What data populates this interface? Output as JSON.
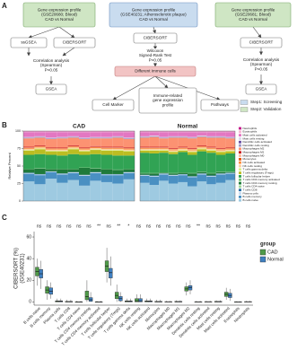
{
  "panel_labels": [
    "A",
    "B",
    "C"
  ],
  "diagram": {
    "nodes": [
      {
        "lines": [
          "Gene expression profile",
          "(GSE20680; Blood)",
          "CAD vs Normal"
        ]
      },
      {
        "lines": [
          "Gene expression profile",
          "(GSE40231; Atherosclerotic plaque)",
          "CAD vs Normal"
        ]
      },
      {
        "lines": [
          "Gene expression profile",
          "(GSE20681; Blood)",
          "CAD vs Normal"
        ]
      },
      {
        "lines": [
          "ssGSEA"
        ]
      },
      {
        "lines": [
          "CIBERSORT"
        ]
      },
      {
        "lines": [
          "CIBERSORT"
        ]
      },
      {
        "lines": [
          "CIBERSORT"
        ]
      },
      {
        "lines": [
          "GSEA"
        ]
      },
      {
        "lines": [
          "Different Immune cells"
        ]
      },
      {
        "lines": [
          "Cell Marker"
        ]
      },
      {
        "lines": [
          "Immune-related",
          "gene expression",
          "profile"
        ]
      },
      {
        "lines": [
          "Pathways"
        ]
      },
      {
        "lines": [
          "GSEA"
        ]
      }
    ],
    "notes": [
      {
        "lines": [
          "Correlation analysis",
          "(Spearman)",
          "P<0.05"
        ]
      },
      {
        "lines": [
          "Wilcoxon",
          "Signed-Rank Test",
          "P<0.05"
        ]
      },
      {
        "lines": [
          "Correlation analysis",
          "(Spearman)",
          "P<0.05"
        ]
      }
    ],
    "legend": [
      {
        "label": "Step1: Screening",
        "color": "#c9dcef"
      },
      {
        "label": "Step2: Validation",
        "color": "#cfe6c4"
      }
    ]
  },
  "chart_data": [
    {
      "type": "stacked_bar",
      "title": "CAD",
      "y_label": "Relative Percent",
      "ylim": [
        0,
        100
      ],
      "yticks": [
        0,
        25,
        50,
        75,
        100
      ],
      "series": [
        {
          "name": "B cells naive",
          "color": "#9ecae1",
          "values": [
            28,
            24,
            32,
            26,
            30,
            22,
            29,
            27,
            25,
            31
          ]
        },
        {
          "name": "B cells memory",
          "color": "#4a90c2",
          "values": [
            11,
            13,
            9,
            12,
            10,
            14,
            11,
            10,
            12,
            9
          ]
        },
        {
          "name": "Plasma cells",
          "color": "#c6dbef",
          "values": [
            1,
            1,
            1,
            1,
            1,
            1,
            1,
            1,
            1,
            1
          ]
        },
        {
          "name": "T cells CD8",
          "color": "#2c6fa6",
          "values": [
            0.5,
            0.5,
            0.5,
            0.5,
            0.5,
            0.5,
            0.5,
            0.5,
            0.5,
            0.5
          ]
        },
        {
          "name": "T cells CD4 naive",
          "color": "#a1d99b",
          "values": [
            0,
            0,
            0,
            0,
            0,
            0,
            0,
            0,
            0,
            0
          ]
        },
        {
          "name": "T cells CD4 memory resting",
          "color": "#1f7a3a",
          "values": [
            5,
            8,
            3,
            6,
            4,
            10,
            5,
            7,
            6,
            4
          ]
        },
        {
          "name": "T cells CD4 memory activated",
          "color": "#74c476",
          "values": [
            0.5,
            0.5,
            0.5,
            0.5,
            0.5,
            0.5,
            0.5,
            0.5,
            0.5,
            0.5
          ]
        },
        {
          "name": "T cells follicular helper",
          "color": "#31a354",
          "values": [
            20,
            20,
            20,
            19,
            21,
            18,
            20,
            20,
            20,
            19
          ]
        },
        {
          "name": "T cells regulatory (Tregs)",
          "color": "#bcbd22",
          "values": [
            6,
            7,
            5,
            6,
            7,
            5,
            6,
            6,
            7,
            6
          ]
        },
        {
          "name": "T cells gamma delta",
          "color": "#d9ef8b",
          "values": [
            1,
            1,
            1,
            1,
            1,
            1,
            1,
            1,
            1,
            1
          ]
        },
        {
          "name": "NK cells resting",
          "color": "#fdd0a2",
          "values": [
            1.5,
            1.5,
            1.5,
            1.5,
            1.5,
            1.5,
            1.5,
            1.5,
            1.5,
            1.5
          ]
        },
        {
          "name": "NK cells activated",
          "color": "#fd8d3c",
          "values": [
            1,
            1,
            1,
            1,
            1,
            1,
            1,
            1,
            1,
            1
          ]
        },
        {
          "name": "Monocytes",
          "color": "#e6550d",
          "values": [
            0.5,
            0.5,
            0.5,
            0.5,
            0.5,
            0.5,
            0.5,
            0.5,
            0.5,
            0.5
          ]
        },
        {
          "name": "Macrophages M0",
          "color": "#fcbba1",
          "values": [
            0.5,
            0.5,
            0.5,
            0.5,
            0.5,
            0.5,
            0.5,
            0.5,
            0.5,
            0.5
          ]
        },
        {
          "name": "Macrophages M1",
          "color": "#cb181d",
          "values": [
            1,
            1,
            1,
            1,
            1,
            1,
            1,
            1,
            1,
            1
          ]
        },
        {
          "name": "Macrophages M2",
          "color": "#fc9272",
          "values": [
            12,
            11,
            12,
            13,
            11,
            12,
            11,
            12,
            13,
            12
          ]
        },
        {
          "name": "Dendritic cells resting",
          "color": "#9e9ac8",
          "values": [
            0.5,
            0.5,
            0.5,
            0.5,
            0.5,
            0.5,
            0.5,
            0.5,
            0.5,
            0.5
          ]
        },
        {
          "name": "Dendritic cells activated",
          "color": "#6a51a3",
          "values": [
            0.5,
            0.5,
            0.5,
            0.5,
            0.5,
            0.5,
            0.5,
            0.5,
            0.5,
            0.5
          ]
        },
        {
          "name": "Mast cells resting",
          "color": "#dadaeb",
          "values": [
            1,
            1,
            1,
            1,
            1,
            1,
            1,
            1,
            1,
            1
          ]
        },
        {
          "name": "Mast cells activated",
          "color": "#e377c2",
          "values": [
            7,
            6,
            8,
            7,
            6,
            8,
            7,
            7,
            6,
            8
          ]
        },
        {
          "name": "Eosinophils",
          "color": "#f7b6d2",
          "values": [
            0.5,
            0.5,
            0.5,
            0.5,
            0.5,
            0.5,
            0.5,
            0.5,
            0.5,
            0.5
          ]
        },
        {
          "name": "Neutrophils",
          "color": "#c51b8a",
          "values": [
            0.5,
            0.5,
            0.5,
            0.5,
            0.5,
            0.5,
            0.5,
            0.5,
            0.5,
            0.5
          ]
        }
      ]
    },
    {
      "type": "stacked_bar",
      "title": "Normal",
      "ylim": [
        0,
        100
      ],
      "series": [
        {
          "color": "#9ecae1",
          "values": [
            26,
            23,
            29,
            25,
            27,
            21,
            28,
            24,
            26,
            30
          ]
        },
        {
          "color": "#4a90c2",
          "values": [
            10,
            12,
            9,
            11,
            10,
            13,
            10,
            11,
            12,
            9
          ]
        },
        {
          "color": "#c6dbef",
          "values": [
            1,
            1,
            1,
            1,
            1,
            1,
            1,
            1,
            1,
            1
          ]
        },
        {
          "color": "#2c6fa6",
          "values": [
            0.5,
            0.5,
            0.5,
            0.5,
            0.5,
            0.5,
            0.5,
            0.5,
            0.5,
            0.5
          ]
        },
        {
          "color": "#a1d99b",
          "values": [
            0,
            0,
            0,
            0,
            0,
            0,
            0,
            0,
            0,
            0
          ]
        },
        {
          "color": "#1f7a3a",
          "values": [
            2,
            3,
            1,
            2,
            2,
            4,
            2,
            3,
            2,
            1
          ]
        },
        {
          "color": "#74c476",
          "values": [
            0.5,
            0.5,
            0.5,
            0.5,
            0.5,
            0.5,
            0.5,
            0.5,
            0.5,
            0.5
          ]
        },
        {
          "color": "#31a354",
          "values": [
            29,
            28,
            28,
            27,
            29,
            26,
            29,
            29,
            24,
            26
          ]
        },
        {
          "color": "#bcbd22",
          "values": [
            3,
            4,
            3,
            3,
            2,
            4,
            3,
            3,
            4,
            3
          ]
        },
        {
          "color": "#d9ef8b",
          "values": [
            1,
            1,
            1,
            1,
            1,
            1,
            1,
            1,
            1,
            1
          ]
        },
        {
          "color": "#fdd0a2",
          "values": [
            1.5,
            1.5,
            1.5,
            1.5,
            1.5,
            1.5,
            1.5,
            1.5,
            1.5,
            1.5
          ]
        },
        {
          "color": "#fd8d3c",
          "values": [
            1,
            1,
            1,
            1,
            1,
            1,
            1,
            1,
            1,
            1
          ]
        },
        {
          "color": "#e6550d",
          "values": [
            0.5,
            0.5,
            0.5,
            0.5,
            0.5,
            0.5,
            0.5,
            0.5,
            0.5,
            0.5
          ]
        },
        {
          "color": "#fcbba1",
          "values": [
            0.5,
            0.5,
            0.5,
            0.5,
            0.5,
            0.5,
            0.5,
            0.5,
            0.5,
            0.5
          ]
        },
        {
          "color": "#cb181d",
          "values": [
            1,
            1,
            1,
            1,
            1,
            1,
            1,
            1,
            1,
            1
          ]
        },
        {
          "color": "#fc9272",
          "values": [
            13,
            14,
            12,
            15,
            13,
            14,
            12,
            13,
            15,
            13
          ]
        },
        {
          "color": "#9e9ac8",
          "values": [
            0.5,
            0.5,
            0.5,
            0.5,
            0.5,
            0.5,
            0.5,
            0.5,
            0.5,
            0.5
          ]
        },
        {
          "color": "#6a51a3",
          "values": [
            0.5,
            0.5,
            0.5,
            0.5,
            0.5,
            0.5,
            0.5,
            0.5,
            0.5,
            0.5
          ]
        },
        {
          "color": "#dadaeb",
          "values": [
            1,
            1,
            1,
            1,
            1,
            1,
            1,
            1,
            1,
            1
          ]
        },
        {
          "color": "#e377c2",
          "values": [
            6,
            5,
            7,
            6,
            6,
            7,
            5,
            6,
            6,
            7
          ]
        },
        {
          "color": "#f7b6d2",
          "values": [
            0.5,
            0.5,
            0.5,
            0.5,
            0.5,
            0.5,
            0.5,
            0.5,
            0.5,
            0.5
          ]
        },
        {
          "color": "#c51b8a",
          "values": [
            0.5,
            0.5,
            0.5,
            0.5,
            0.5,
            0.5,
            0.5,
            0.5,
            0.5,
            0.5
          ]
        }
      ]
    },
    {
      "type": "boxplot",
      "y_label": [
        "CIBERSORT (%)",
        "(GSE40231)"
      ],
      "ylim": [
        -3,
        65
      ],
      "yticks": [
        0,
        20,
        40,
        60
      ],
      "legend_title": "group",
      "categories": [
        "B cells naive",
        "B cells memory",
        "Plasma cells",
        "T cells CD8",
        "T cells CD4 naive",
        "T cells CD4 memory resting",
        "T cells CD4 memory activated",
        "T cells follicular helper",
        "T cells regulatory (Tregs)",
        "T cells gamma delta",
        "NK cells resting",
        "NK cells activated",
        "Monocytes",
        "Macrophages M0",
        "Macrophages M1",
        "Macrophages M2",
        "Dendritic cells resting",
        "Dendritic cells activated",
        "Mast cells resting",
        "Mast cells activated",
        "Eosinophils",
        "Neutrophils"
      ],
      "annotations": [
        "ns",
        "ns",
        "ns",
        "ns",
        "ns",
        "ns",
        "**",
        "ns",
        "**",
        "*",
        "ns",
        "ns",
        "ns",
        "ns",
        "ns",
        "ns",
        "**",
        "ns",
        "ns",
        "ns",
        "ns",
        "ns"
      ],
      "series": [
        {
          "name": "CAD",
          "color": "#4f9a48",
          "min": [
            15,
            2,
            0,
            0,
            0,
            0,
            0,
            18,
            0,
            0,
            0,
            0,
            0,
            0,
            0,
            6,
            0,
            0,
            0,
            2,
            0,
            0
          ],
          "q1": [
            24,
            8,
            0,
            0,
            0,
            2,
            0,
            28,
            3,
            0,
            0,
            0,
            0,
            0,
            0,
            10,
            0,
            0,
            0,
            5,
            0,
            0
          ],
          "median": [
            28,
            11,
            0.5,
            0,
            0,
            5,
            0,
            33,
            6,
            0.5,
            1,
            0.5,
            0,
            0,
            0,
            12,
            0,
            0,
            0,
            7,
            0,
            0
          ],
          "q3": [
            32,
            14,
            1,
            0.5,
            0,
            10,
            0,
            38,
            9,
            1,
            3,
            1,
            0.5,
            0.3,
            0.5,
            14,
            0.2,
            0.3,
            0.5,
            9,
            0,
            0.3
          ],
          "max": [
            40,
            20,
            3,
            2,
            1,
            20,
            1,
            50,
            16,
            3,
            7,
            3,
            2,
            1,
            1.5,
            18,
            1,
            1,
            1.5,
            13,
            0.5,
            1
          ]
        },
        {
          "name": "Normal",
          "color": "#3f7fc0",
          "min": [
            12,
            3,
            0,
            0,
            0,
            0,
            0,
            15,
            0,
            0,
            0,
            0,
            0,
            0,
            0,
            7,
            0,
            0,
            0,
            1,
            0,
            0
          ],
          "q1": [
            22,
            7,
            0,
            0,
            0,
            0.5,
            0,
            22,
            1,
            0,
            0,
            0,
            0,
            0,
            0,
            11,
            0,
            0,
            0,
            4,
            0,
            0
          ],
          "median": [
            26,
            10,
            0.5,
            0,
            0,
            2,
            0,
            27,
            3,
            0.5,
            1,
            0.5,
            0,
            0,
            0,
            13,
            0,
            0,
            0,
            6,
            0,
            0
          ],
          "q3": [
            30,
            13,
            1,
            0.5,
            0,
            4,
            0,
            31,
            5,
            1,
            3,
            1,
            0.5,
            0.3,
            0.5,
            15,
            0.2,
            0.3,
            0.5,
            8,
            0,
            0.3
          ],
          "max": [
            38,
            18,
            3,
            2,
            1,
            9,
            1,
            42,
            9,
            3,
            7,
            3,
            2,
            1,
            1.5,
            20,
            1,
            1,
            1.5,
            12,
            0.5,
            1
          ]
        }
      ]
    }
  ]
}
